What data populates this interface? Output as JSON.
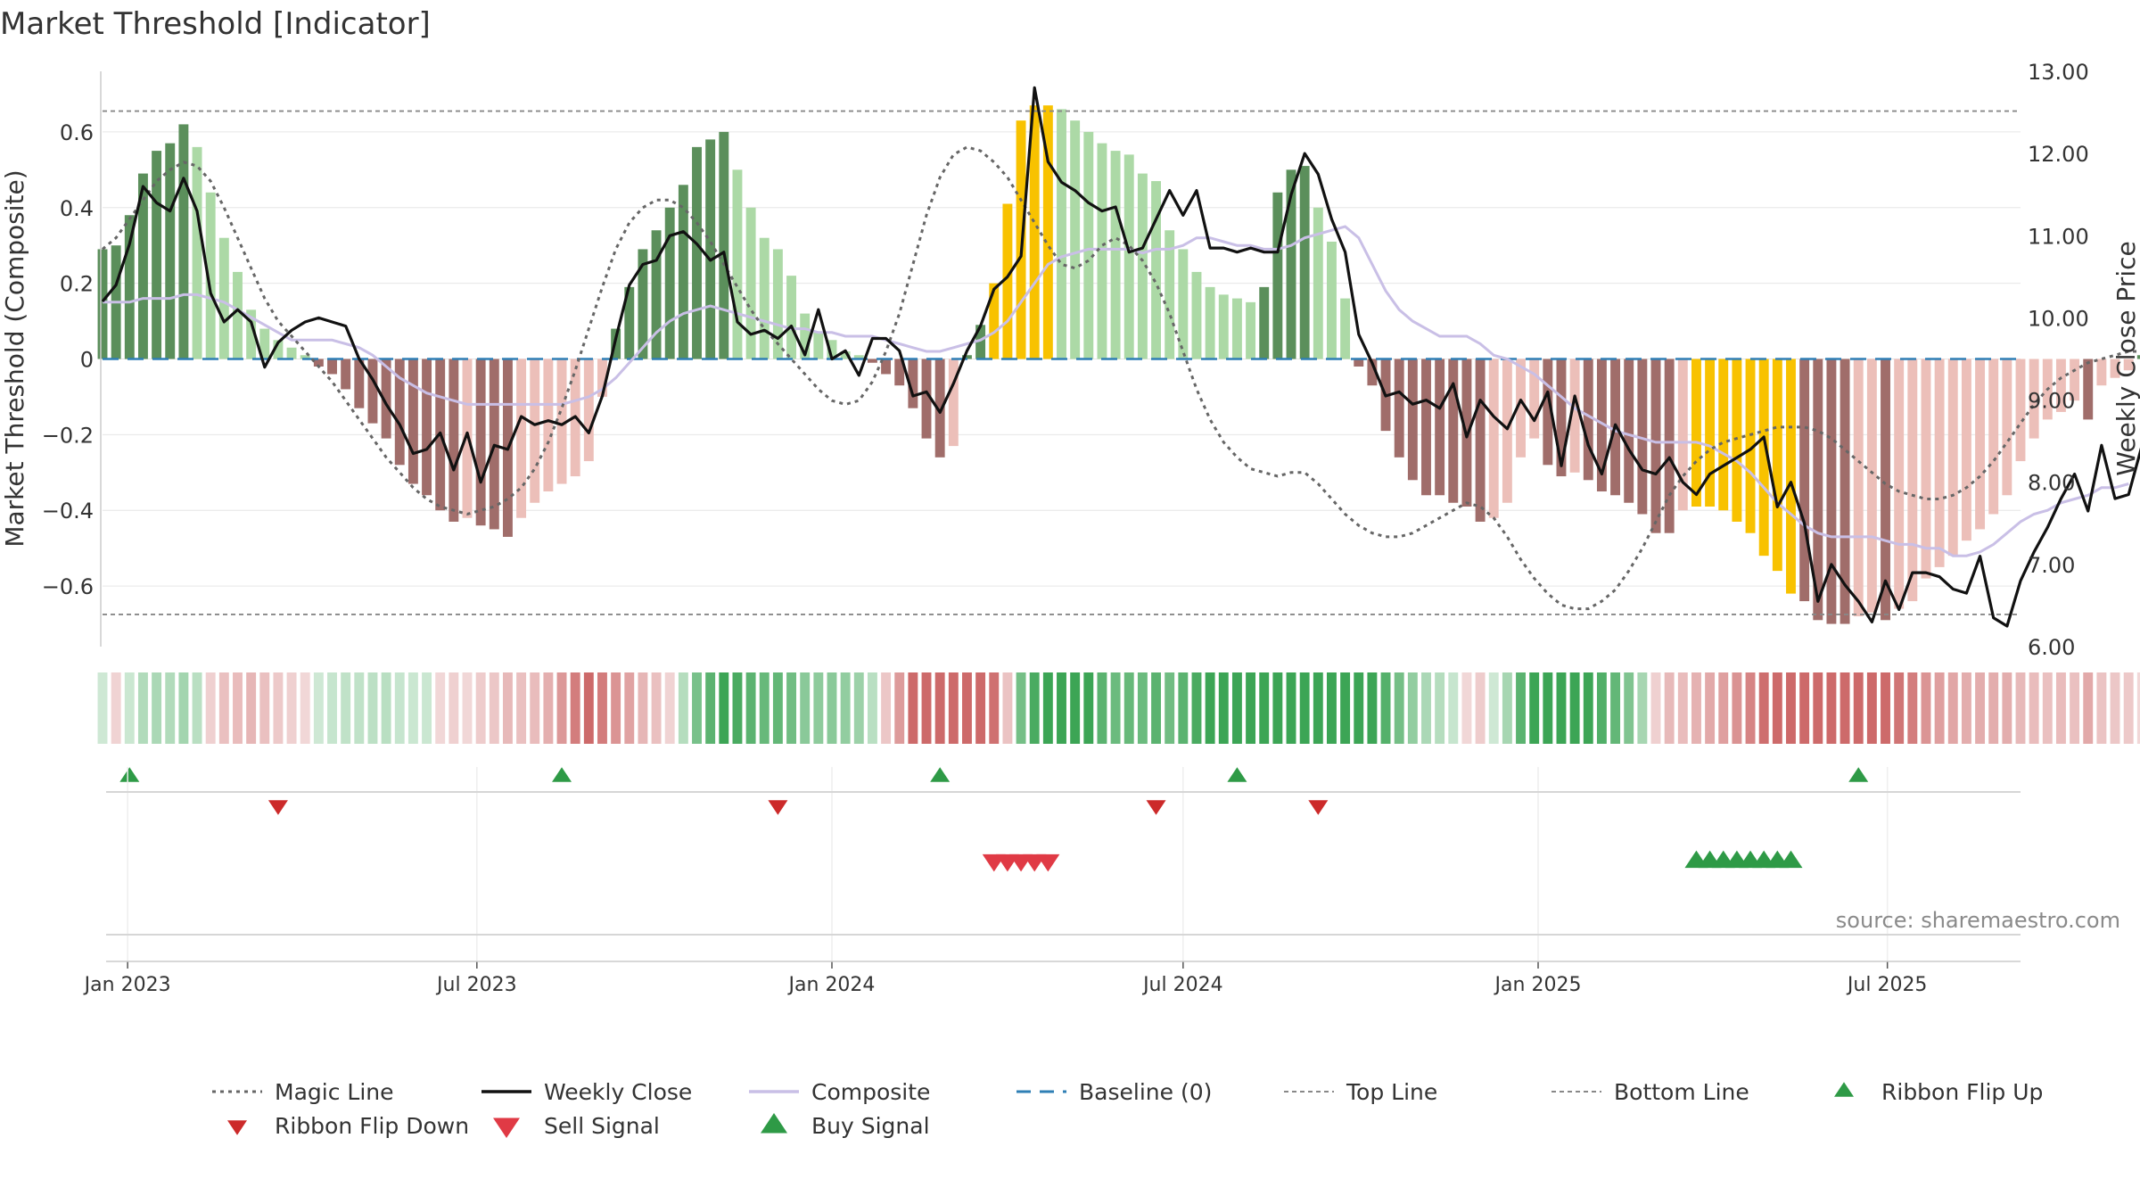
{
  "chart_data": {
    "type": "bar",
    "title": "Market Threshold [Indicator]",
    "ylabel": "Market Threshold (Composite)",
    "y2label": "Weekly Close Price",
    "source": "source: sharemaestro.com",
    "ylim": [
      -0.76,
      0.76
    ],
    "y2lim": [
      6.0,
      13.0
    ],
    "yticks": [
      0.6,
      0.4,
      0.2,
      0,
      -0.2,
      -0.4,
      -0.6
    ],
    "ytick_labels": [
      "0.6",
      "0.4",
      "0.2",
      "0",
      "−0.2",
      "−0.4",
      "−0.6"
    ],
    "y2ticks": [
      13.0,
      12.0,
      11.0,
      10.0,
      9.0,
      8.0,
      7.0,
      6.0
    ],
    "y2tick_labels": [
      "13.00",
      "12.00",
      "11.00",
      "10.00",
      "9.00",
      "8.00",
      "7.00",
      "6.00"
    ],
    "top_line": 0.655,
    "bottom_line": -0.675,
    "grid": true,
    "legend_position": "bottom",
    "x_axis": {
      "start": "2022-12-19",
      "end": "2025-09-08",
      "ticks": [
        {
          "date": "2023-01-01",
          "label": "Jan 2023"
        },
        {
          "date": "2023-07-01",
          "label": "Jul 2023"
        },
        {
          "date": "2024-01-01",
          "label": "Jan 2024"
        },
        {
          "date": "2024-07-01",
          "label": "Jul 2024"
        },
        {
          "date": "2025-01-01",
          "label": "Jan 2025"
        },
        {
          "date": "2025-07-01",
          "label": "Jul 2025"
        }
      ]
    },
    "composite": [
      0.29,
      0.3,
      0.38,
      0.49,
      0.55,
      0.57,
      0.62,
      0.56,
      0.44,
      0.32,
      0.23,
      0.13,
      0.08,
      0.05,
      0.03,
      0.01,
      -0.02,
      -0.04,
      -0.08,
      -0.13,
      -0.17,
      -0.21,
      -0.28,
      -0.33,
      -0.36,
      -0.4,
      -0.43,
      -0.42,
      -0.44,
      -0.45,
      -0.47,
      -0.42,
      -0.38,
      -0.35,
      -0.33,
      -0.31,
      -0.27,
      -0.1,
      0.08,
      0.19,
      0.29,
      0.34,
      0.4,
      0.46,
      0.56,
      0.58,
      0.6,
      0.5,
      0.4,
      0.32,
      0.29,
      0.22,
      0.12,
      0.07,
      0.05,
      0.02,
      0.01,
      -0.01,
      -0.04,
      -0.07,
      -0.13,
      -0.21,
      -0.26,
      -0.23,
      0.01,
      0.09,
      0.2,
      0.41,
      0.63,
      0.67,
      0.67,
      0.66,
      0.63,
      0.6,
      0.57,
      0.55,
      0.54,
      0.49,
      0.47,
      0.34,
      0.29,
      0.23,
      0.19,
      0.17,
      0.16,
      0.15,
      0.19,
      0.44,
      0.5,
      0.51,
      0.4,
      0.31,
      0.16,
      -0.02,
      -0.07,
      -0.19,
      -0.26,
      -0.32,
      -0.36,
      -0.36,
      -0.38,
      -0.39,
      -0.43,
      -0.42,
      -0.38,
      -0.26,
      -0.21,
      -0.28,
      -0.31,
      -0.3,
      -0.32,
      -0.35,
      -0.36,
      -0.38,
      -0.41,
      -0.46,
      -0.46,
      -0.4,
      -0.39,
      -0.39,
      -0.4,
      -0.43,
      -0.46,
      -0.52,
      -0.56,
      -0.62,
      -0.64,
      -0.69,
      -0.7,
      -0.7,
      -0.68,
      -0.67,
      -0.69,
      -0.66,
      -0.64,
      -0.58,
      -0.55,
      -0.52,
      -0.48,
      -0.45,
      -0.41,
      -0.36,
      -0.27,
      -0.21,
      -0.16,
      -0.14,
      -0.11,
      -0.16,
      -0.07,
      -0.05,
      -0.03,
      0.01,
      0.02
    ],
    "weekly_close": [
      10.2,
      10.4,
      10.9,
      11.6,
      11.4,
      11.3,
      11.7,
      11.3,
      10.3,
      9.95,
      10.1,
      9.95,
      9.4,
      9.7,
      9.85,
      9.95,
      10.0,
      9.95,
      9.9,
      9.5,
      9.25,
      8.95,
      8.7,
      8.35,
      8.4,
      8.6,
      8.15,
      8.6,
      8.0,
      8.45,
      8.4,
      8.8,
      8.7,
      8.75,
      8.7,
      8.8,
      8.6,
      9.05,
      9.75,
      10.4,
      10.65,
      10.7,
      11.0,
      11.05,
      10.9,
      10.7,
      10.8,
      9.95,
      9.8,
      9.85,
      9.75,
      9.9,
      9.55,
      10.1,
      9.5,
      9.6,
      9.3,
      9.75,
      9.75,
      9.6,
      9.05,
      9.1,
      8.85,
      9.2,
      9.6,
      9.9,
      10.35,
      10.5,
      10.75,
      12.8,
      11.9,
      11.65,
      11.55,
      11.4,
      11.3,
      11.35,
      10.8,
      10.85,
      11.2,
      11.55,
      11.25,
      11.55,
      10.85,
      10.85,
      10.8,
      10.85,
      10.8,
      10.8,
      11.5,
      12.0,
      11.75,
      11.2,
      10.8,
      9.8,
      9.45,
      9.05,
      9.1,
      8.95,
      9.0,
      8.9,
      9.2,
      8.55,
      9.0,
      8.8,
      8.65,
      9.0,
      8.75,
      9.1,
      8.2,
      9.05,
      8.45,
      8.1,
      8.7,
      8.4,
      8.15,
      8.1,
      8.3,
      8.0,
      7.85,
      8.1,
      8.2,
      8.3,
      8.4,
      8.55,
      7.7,
      8.0,
      7.5,
      6.55,
      7.0,
      6.75,
      6.55,
      6.3,
      6.8,
      6.45,
      6.9,
      6.9,
      6.85,
      6.7,
      6.65,
      7.1,
      6.35,
      6.25,
      6.8,
      7.15,
      7.45,
      7.8,
      8.1,
      7.65,
      8.45,
      7.8,
      7.85,
      8.45,
      8.5,
      7.75,
      7.75,
      8.15,
      8.55,
      7.95,
      8.4
    ],
    "composite_line": [
      0.15,
      0.15,
      0.15,
      0.16,
      0.16,
      0.16,
      0.17,
      0.17,
      0.16,
      0.15,
      0.13,
      0.11,
      0.09,
      0.07,
      0.05,
      0.05,
      0.05,
      0.05,
      0.04,
      0.03,
      0.01,
      -0.02,
      -0.05,
      -0.07,
      -0.09,
      -0.1,
      -0.11,
      -0.12,
      -0.12,
      -0.12,
      -0.12,
      -0.12,
      -0.12,
      -0.12,
      -0.12,
      -0.11,
      -0.1,
      -0.08,
      -0.05,
      -0.01,
      0.03,
      0.07,
      0.1,
      0.12,
      0.13,
      0.14,
      0.13,
      0.12,
      0.11,
      0.1,
      0.09,
      0.08,
      0.08,
      0.07,
      0.07,
      0.06,
      0.06,
      0.06,
      0.05,
      0.04,
      0.03,
      0.02,
      0.02,
      0.03,
      0.04,
      0.05,
      0.07,
      0.1,
      0.15,
      0.2,
      0.25,
      0.27,
      0.28,
      0.29,
      0.29,
      0.29,
      0.29,
      0.28,
      0.29,
      0.29,
      0.3,
      0.32,
      0.32,
      0.31,
      0.3,
      0.3,
      0.29,
      0.29,
      0.3,
      0.32,
      0.33,
      0.34,
      0.35,
      0.32,
      0.25,
      0.18,
      0.13,
      0.1,
      0.08,
      0.06,
      0.06,
      0.06,
      0.04,
      0.01,
      0.0,
      -0.02,
      -0.04,
      -0.07,
      -0.1,
      -0.13,
      -0.15,
      -0.17,
      -0.19,
      -0.2,
      -0.21,
      -0.22,
      -0.22,
      -0.22,
      -0.22,
      -0.23,
      -0.25,
      -0.27,
      -0.3,
      -0.34,
      -0.38,
      -0.41,
      -0.44,
      -0.46,
      -0.47,
      -0.47,
      -0.47,
      -0.47,
      -0.48,
      -0.49,
      -0.49,
      -0.5,
      -0.5,
      -0.52,
      -0.52,
      -0.51,
      -0.49,
      -0.46,
      -0.43,
      -0.41,
      -0.4,
      -0.38,
      -0.37,
      -0.36,
      -0.34,
      -0.34,
      -0.33
    ],
    "magic_line": [
      0.29,
      0.32,
      0.37,
      0.42,
      0.47,
      0.5,
      0.52,
      0.51,
      0.47,
      0.4,
      0.32,
      0.24,
      0.16,
      0.1,
      0.06,
      0.02,
      -0.02,
      -0.06,
      -0.11,
      -0.16,
      -0.21,
      -0.26,
      -0.3,
      -0.34,
      -0.37,
      -0.39,
      -0.4,
      -0.41,
      -0.4,
      -0.39,
      -0.37,
      -0.34,
      -0.29,
      -0.22,
      -0.13,
      -0.03,
      0.08,
      0.19,
      0.29,
      0.36,
      0.4,
      0.42,
      0.42,
      0.4,
      0.36,
      0.31,
      0.25,
      0.19,
      0.13,
      0.08,
      0.04,
      0.0,
      -0.04,
      -0.08,
      -0.11,
      -0.12,
      -0.11,
      -0.06,
      0.02,
      0.12,
      0.25,
      0.38,
      0.48,
      0.54,
      0.56,
      0.55,
      0.52,
      0.48,
      0.42,
      0.36,
      0.3,
      0.25,
      0.24,
      0.26,
      0.3,
      0.32,
      0.3,
      0.26,
      0.2,
      0.12,
      0.02,
      -0.08,
      -0.16,
      -0.22,
      -0.26,
      -0.29,
      -0.3,
      -0.31,
      -0.3,
      -0.3,
      -0.33,
      -0.37,
      -0.41,
      -0.44,
      -0.46,
      -0.47,
      -0.47,
      -0.46,
      -0.44,
      -0.42,
      -0.4,
      -0.38,
      -0.39,
      -0.42,
      -0.47,
      -0.53,
      -0.58,
      -0.62,
      -0.65,
      -0.66,
      -0.66,
      -0.64,
      -0.61,
      -0.56,
      -0.5,
      -0.43,
      -0.36,
      -0.31,
      -0.27,
      -0.24,
      -0.22,
      -0.21,
      -0.2,
      -0.19,
      -0.18,
      -0.18,
      -0.18,
      -0.19,
      -0.21,
      -0.24,
      -0.27,
      -0.3,
      -0.33,
      -0.35,
      -0.36,
      -0.37,
      -0.37,
      -0.36,
      -0.34,
      -0.31,
      -0.27,
      -0.22,
      -0.17,
      -0.12,
      -0.08,
      -0.05,
      -0.03,
      -0.01,
      0.0,
      0.01,
      0.02,
      0.02,
      0.02
    ],
    "ribbon_flip_up": [
      "2023-01-02",
      "2023-08-14",
      "2024-02-26",
      "2024-07-29",
      "2025-06-16"
    ],
    "ribbon_flip_down": [
      "2023-03-20",
      "2023-12-04",
      "2024-06-17",
      "2024-09-09"
    ],
    "sell_signals": [
      "2024-03-25",
      "2024-04-01",
      "2024-04-08",
      "2024-04-15",
      "2024-04-22"
    ],
    "buy_signals": [
      "2025-03-24",
      "2025-03-31",
      "2025-04-07",
      "2025-04-14",
      "2025-04-21",
      "2025-04-28",
      "2025-05-05",
      "2025-05-12"
    ],
    "legend": [
      {
        "label": "Magic Line",
        "kind": "dotted-line",
        "color": "#666666"
      },
      {
        "label": "Weekly Close",
        "kind": "solid-line",
        "color": "#111111"
      },
      {
        "label": "Composite",
        "kind": "solid-line",
        "color": "#c9bfe6"
      },
      {
        "label": "Baseline (0)",
        "kind": "dashed-line",
        "color": "#2f7fb5"
      },
      {
        "label": "Top Line",
        "kind": "fine-dash",
        "color": "#888888"
      },
      {
        "label": "Bottom Line",
        "kind": "fine-dash",
        "color": "#888888"
      },
      {
        "label": "Ribbon Flip Up",
        "kind": "tri-up",
        "color": "#2e9a46"
      },
      {
        "label": "Ribbon Flip Down",
        "kind": "tri-down",
        "color": "#cc2a2a"
      },
      {
        "label": "Sell Signal",
        "kind": "tri-down-big",
        "color": "#e03a45"
      },
      {
        "label": "Buy Signal",
        "kind": "tri-up-big",
        "color": "#2e9a46"
      }
    ],
    "colors": {
      "pos_strong": "#5b8f5b",
      "pos_light": "#acd9a6",
      "neg_strong": "#a06d6a",
      "neg_light": "#ecbfb9",
      "extreme": "#f8c200",
      "magic": "#666666",
      "close": "#111111",
      "composite": "#c9bfe6",
      "baseline": "#2f7fb5",
      "threshold": "#888888"
    }
  }
}
